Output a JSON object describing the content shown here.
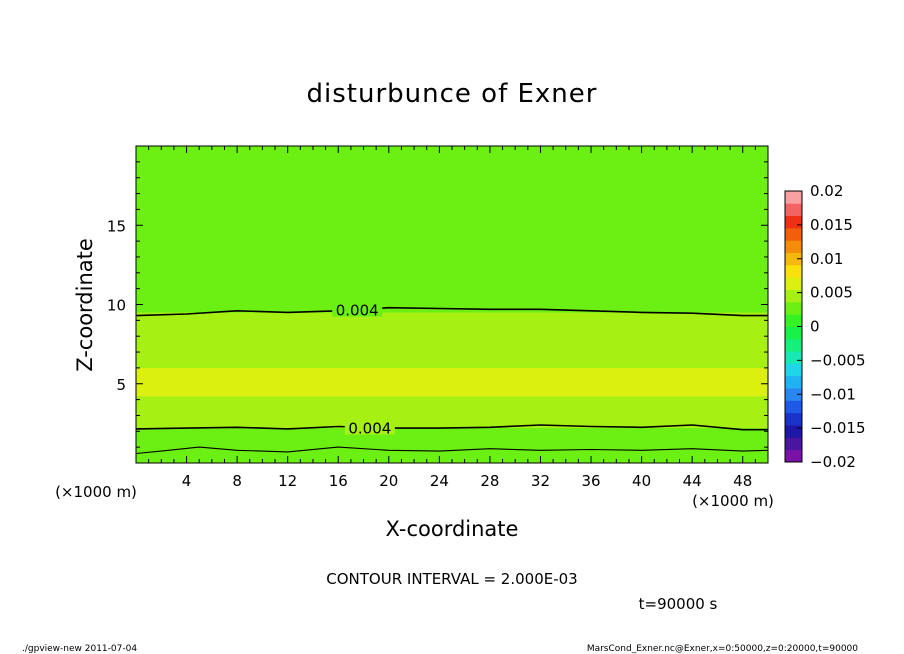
{
  "chart_data": {
    "type": "heatmap",
    "title": "disturbunce of Exner",
    "xlabel": "X-coordinate",
    "ylabel": "Z-coordinate",
    "xunit": "(×1000 m)",
    "xlim": [
      0,
      50
    ],
    "ylim": [
      0,
      20
    ],
    "xticks": [
      4,
      8,
      12,
      16,
      20,
      24,
      28,
      32,
      36,
      40,
      44,
      48
    ],
    "yticks": [
      5,
      10,
      15
    ],
    "colorbar": {
      "ticks": [
        "0.02",
        "0.015",
        "0.01",
        "0.005",
        "0",
        "−0.005",
        "−0.01",
        "−0.015",
        "−0.02"
      ],
      "range": [
        -0.02,
        0.02
      ],
      "colors": [
        "#7a12a8",
        "#4a16a0",
        "#1e18a8",
        "#1a32c8",
        "#1e5ae6",
        "#2a86f0",
        "#20b2f2",
        "#1fd6e8",
        "#18e8b4",
        "#14f07a",
        "#18f248",
        "#36f224",
        "#6cf014",
        "#a6f014",
        "#dcf010",
        "#fae00c",
        "#f6b80c",
        "#f48c0c",
        "#f25e0c",
        "#ee3014",
        "#f26464",
        "#f8a0a0"
      ]
    },
    "bands": [
      {
        "z": [
          0.0,
          0.4
        ],
        "value": 0.002
      },
      {
        "z": [
          0.4,
          1.0
        ],
        "value": 0.003
      },
      {
        "z": [
          1.0,
          2.2
        ],
        "value": 0.0035
      },
      {
        "z": [
          2.2,
          3.0
        ],
        "value": 0.0045
      },
      {
        "z": [
          3.0,
          4.2
        ],
        "value": 0.005
      },
      {
        "z": [
          4.2,
          6.0
        ],
        "value": 0.0055
      },
      {
        "z": [
          6.0,
          7.6
        ],
        "value": 0.005
      },
      {
        "z": [
          7.6,
          9.5
        ],
        "value": 0.0045
      },
      {
        "z": [
          9.5,
          11.4
        ],
        "value": 0.0035
      },
      {
        "z": [
          11.4,
          13.0
        ],
        "value": 0.003
      },
      {
        "z": [
          13.0,
          20.0
        ],
        "value": 0.0025
      }
    ],
    "contours": [
      {
        "level": "0.004",
        "label": "0.004",
        "label_x": 17.5,
        "x": [
          0,
          4,
          8,
          12,
          16,
          20,
          24,
          28,
          32,
          36,
          40,
          44,
          48,
          50
        ],
        "z": [
          9.3,
          9.4,
          9.6,
          9.5,
          9.6,
          9.8,
          9.75,
          9.7,
          9.7,
          9.6,
          9.5,
          9.45,
          9.3,
          9.3
        ]
      },
      {
        "level": "0.004",
        "label": "0.004",
        "label_x": 18.5,
        "x": [
          0,
          4,
          8,
          12,
          16,
          20,
          24,
          28,
          32,
          36,
          40,
          44,
          48,
          50
        ],
        "z": [
          2.15,
          2.2,
          2.25,
          2.15,
          2.3,
          2.2,
          2.2,
          2.25,
          2.4,
          2.3,
          2.25,
          2.4,
          2.1,
          2.1
        ]
      },
      {
        "level": "",
        "label": "",
        "x": [
          0,
          2,
          5,
          8,
          12,
          16,
          20,
          24,
          28,
          32,
          36,
          40,
          44,
          48,
          50
        ],
        "z": [
          0.6,
          0.75,
          1.0,
          0.8,
          0.7,
          1.0,
          0.8,
          0.75,
          0.9,
          0.8,
          0.85,
          0.8,
          0.9,
          0.75,
          0.8
        ]
      }
    ]
  },
  "footer": {
    "contour_interval": "CONTOUR INTERVAL = 2.000E-03",
    "time": "t=90000 s",
    "program": "./gpview-new  2011-07-04",
    "source": "MarsCond_Exner.nc@Exner,x=0:50000,z=0:20000,t=90000"
  }
}
